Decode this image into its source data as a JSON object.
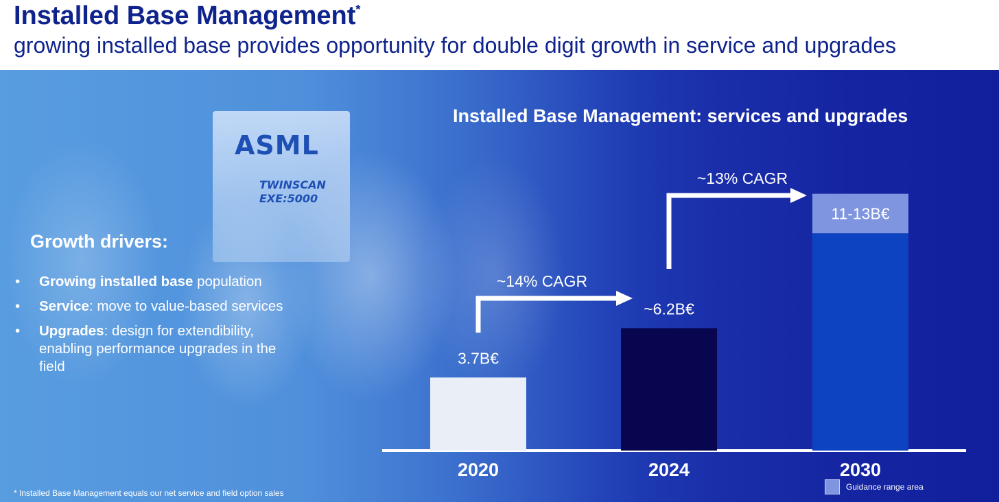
{
  "header": {
    "title": "Installed Base Management",
    "title_mark": "*",
    "subtitle": "growing installed base provides opportunity for double digit growth in service and upgrades"
  },
  "photo": {
    "logo_text": "ASML",
    "model_line1": "TWINSCAN",
    "model_line2": "EXE:5000"
  },
  "drivers": {
    "title": "Growth drivers:",
    "items": [
      {
        "bold": "Growing installed base",
        "rest": " population"
      },
      {
        "bold": "Service",
        "rest": ": move to value-based services"
      },
      {
        "bold": "Upgrades",
        "rest": ": design for extendibility, enabling performance upgrades in the field"
      }
    ]
  },
  "footnote": "* Installed Base Management equals our net service and field option sales",
  "chart_data": {
    "type": "bar",
    "title": "Installed Base Management: services and upgrades",
    "unit": "B€",
    "categories": [
      "2020",
      "2024",
      "2030"
    ],
    "values": [
      3.7,
      6.2,
      11
    ],
    "range": [
      null,
      null,
      [
        11,
        13
      ]
    ],
    "labels": [
      "3.7B€",
      "~6.2B€",
      "11-13B€"
    ],
    "bar_colors": [
      "#e9eef7",
      "#07064f",
      "#0d43c0"
    ],
    "range_color": "#7f95e0",
    "annotations": [
      {
        "from": "2020",
        "to": "2024",
        "label": "~14% CAGR"
      },
      {
        "from": "2024",
        "to": "2030",
        "label": "~13% CAGR"
      }
    ],
    "legend": [
      {
        "label": "Guidance range area",
        "color": "#7f95e0"
      }
    ],
    "legend_position": "bottom-right",
    "grid": false
  }
}
